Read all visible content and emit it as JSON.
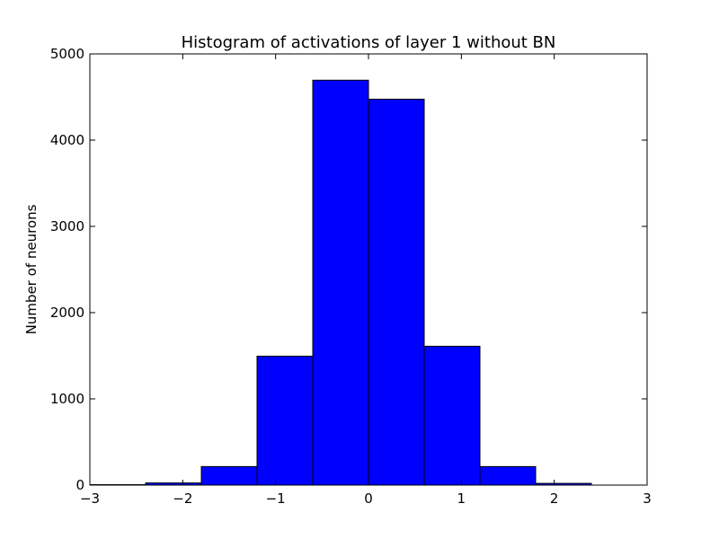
{
  "chart_data": {
    "type": "bar",
    "title": "Histogram of activations of layer 1  without BN",
    "xlabel": "",
    "ylabel": "Number of neurons",
    "xlim": [
      -3,
      3
    ],
    "ylim": [
      0,
      5000
    ],
    "xticks": [
      -3,
      -2,
      -1,
      0,
      1,
      2,
      3
    ],
    "xtick_labels": [
      "−3",
      "−2",
      "−1",
      "0",
      "1",
      "2",
      "3"
    ],
    "yticks": [
      0,
      1000,
      2000,
      3000,
      4000,
      5000
    ],
    "ytick_labels": [
      "0",
      "1000",
      "2000",
      "3000",
      "4000",
      "5000"
    ],
    "bin_edges": [
      -3.0,
      -2.4,
      -1.8,
      -1.2,
      -0.6,
      0.0,
      0.6,
      1.2,
      1.8,
      2.4,
      3.0
    ],
    "values": [
      5,
      25,
      215,
      1495,
      4695,
      4475,
      1610,
      215,
      20,
      0
    ],
    "bar_color": "#0000ff",
    "grid": false,
    "legend": "none"
  }
}
